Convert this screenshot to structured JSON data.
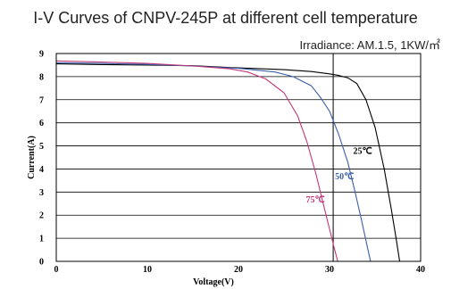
{
  "chart_data": {
    "type": "line",
    "title": "I-V Curves of CNPV-245P at different cell temperature",
    "subtitle": "Irradiance: AM.1.5, 1KW/㎡",
    "xlabel": "Voltage(V)",
    "ylabel": "Current(A)",
    "xlim": [
      0,
      40
    ],
    "ylim": [
      0,
      9
    ],
    "x_ticks": [
      "0",
      "10",
      "20",
      "30",
      "40"
    ],
    "y_ticks": [
      "0",
      "1",
      "2",
      "3",
      "4",
      "5",
      "6",
      "7",
      "8",
      "9"
    ],
    "grid": "horizontal",
    "series": [
      {
        "name": "25℃",
        "color": "#000000",
        "points": [
          [
            0,
            8.55
          ],
          [
            5,
            8.52
          ],
          [
            10,
            8.5
          ],
          [
            15,
            8.47
          ],
          [
            20,
            8.38
          ],
          [
            25,
            8.3
          ],
          [
            28,
            8.22
          ],
          [
            30,
            8.12
          ],
          [
            31,
            8.05
          ],
          [
            32,
            7.95
          ],
          [
            33,
            7.7
          ],
          [
            34,
            7.0
          ],
          [
            35,
            5.8
          ],
          [
            36,
            4.0
          ],
          [
            36.8,
            2.2
          ],
          [
            37.3,
            1.0
          ],
          [
            37.7,
            0.0
          ]
        ]
      },
      {
        "name": "50℃",
        "color": "#3a5fa8",
        "points": [
          [
            0,
            8.6
          ],
          [
            5,
            8.57
          ],
          [
            10,
            8.53
          ],
          [
            15,
            8.46
          ],
          [
            20,
            8.36
          ],
          [
            24,
            8.2
          ],
          [
            26,
            8.0
          ],
          [
            28,
            7.6
          ],
          [
            29,
            7.1
          ],
          [
            30,
            6.5
          ],
          [
            31,
            5.5
          ],
          [
            32,
            4.3
          ],
          [
            32.8,
            3.0
          ],
          [
            33.5,
            1.8
          ],
          [
            34,
            0.9
          ],
          [
            34.5,
            0.0
          ]
        ]
      },
      {
        "name": "75℃",
        "color": "#c2387a",
        "points": [
          [
            0,
            8.68
          ],
          [
            5,
            8.63
          ],
          [
            10,
            8.57
          ],
          [
            15,
            8.46
          ],
          [
            19,
            8.34
          ],
          [
            21,
            8.2
          ],
          [
            23,
            7.9
          ],
          [
            25,
            7.3
          ],
          [
            26.5,
            6.3
          ],
          [
            27.5,
            5.2
          ],
          [
            28.5,
            3.8
          ],
          [
            29.3,
            2.5
          ],
          [
            30,
            1.4
          ],
          [
            30.5,
            0.6
          ],
          [
            30.9,
            0.0
          ]
        ]
      }
    ],
    "annotations": [
      {
        "text": "25℃",
        "x": 32.6,
        "y": 4.65,
        "color": "#000000"
      },
      {
        "text": "50℃",
        "x": 30.6,
        "y": 3.55,
        "color": "#3a5fa8"
      },
      {
        "text": "75℃",
        "x": 27.4,
        "y": 2.55,
        "color": "#c2387a"
      }
    ],
    "marker_line_x": 30.4
  }
}
